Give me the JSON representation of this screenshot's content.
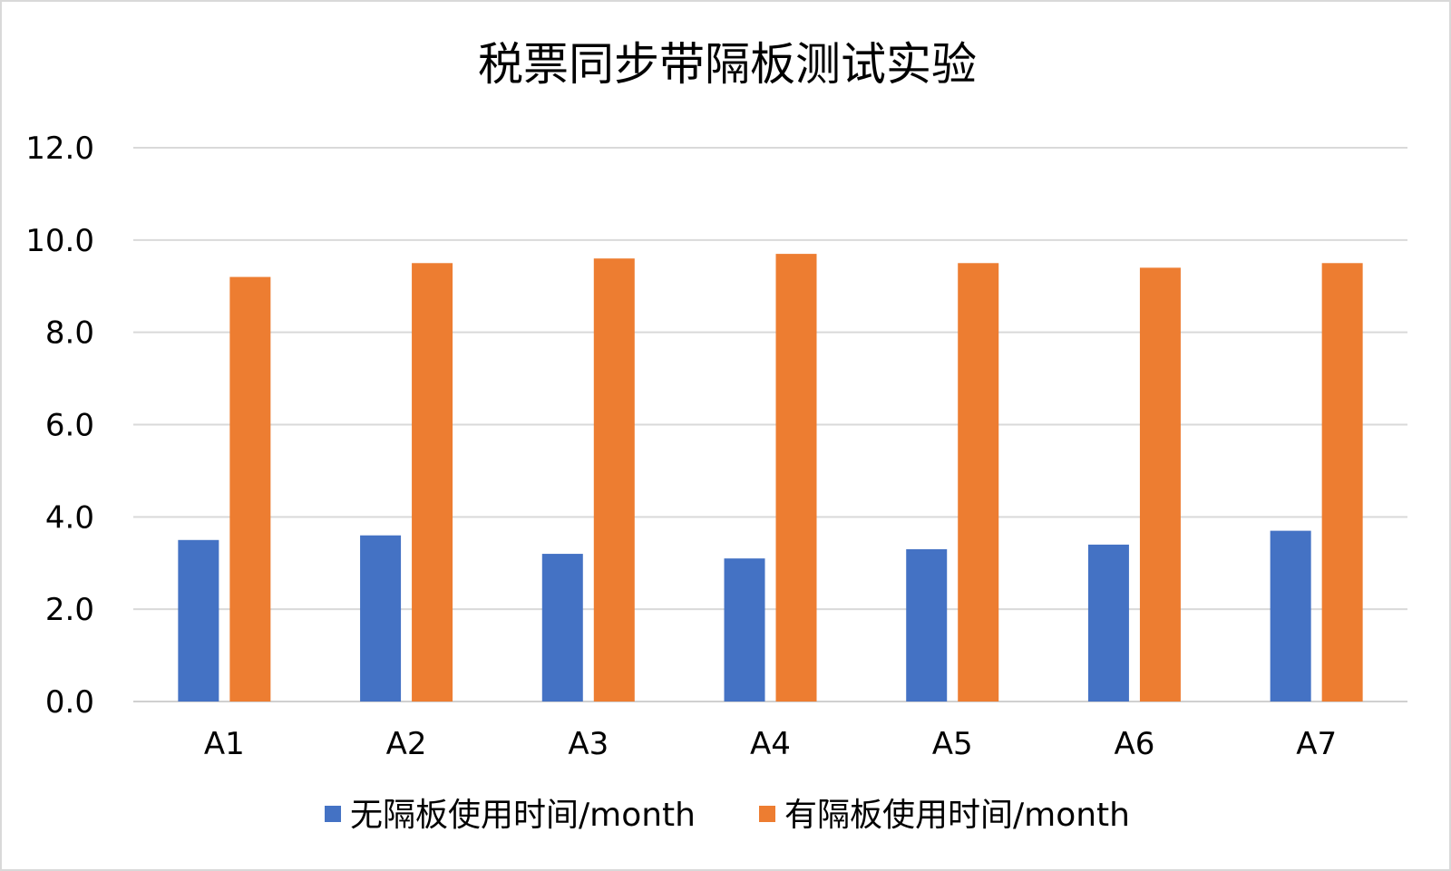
{
  "chart_data": {
    "type": "bar",
    "title": "税票同步带隔板测试实验",
    "categories": [
      "A1",
      "A2",
      "A3",
      "A4",
      "A5",
      "A6",
      "A7"
    ],
    "series": [
      {
        "name": "无隔板使用时间/month",
        "color": "#4472C4",
        "values": [
          3.5,
          3.6,
          3.2,
          3.1,
          3.3,
          3.4,
          3.7
        ]
      },
      {
        "name": "有隔板使用时间/month",
        "color": "#ED7D31",
        "values": [
          9.2,
          9.5,
          9.6,
          9.7,
          9.5,
          9.4,
          9.5
        ]
      }
    ],
    "ylim": [
      0,
      12
    ],
    "yticks": [
      "0.0",
      "2.0",
      "4.0",
      "6.0",
      "8.0",
      "10.0",
      "12.0"
    ],
    "grid": true,
    "legend_position": "bottom",
    "xlabel": "",
    "ylabel": ""
  }
}
